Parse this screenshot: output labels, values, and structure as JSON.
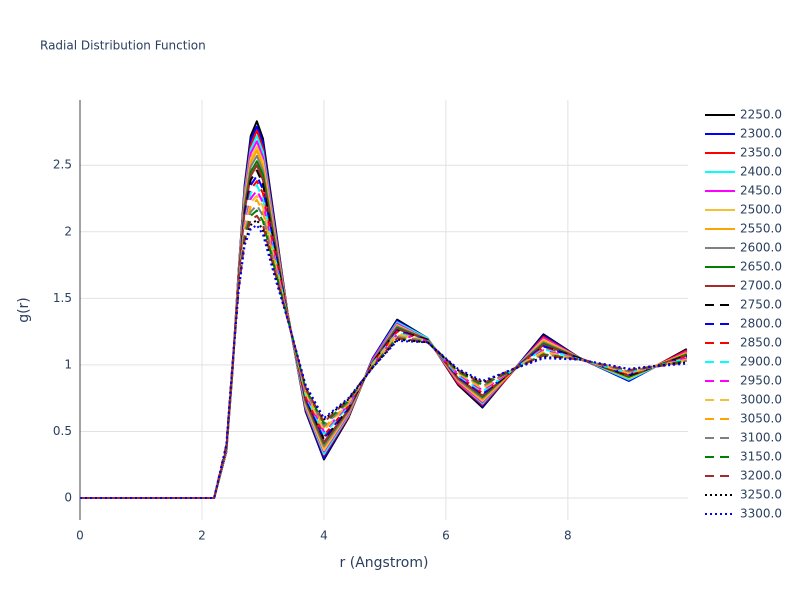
{
  "chart_data": {
    "type": "line",
    "title": "Radial Distribution Function",
    "x_label": "r (Angstrom)",
    "y_label": "g(r)",
    "x": [
      0,
      2.2,
      2.4,
      2.5,
      2.6,
      2.7,
      2.8,
      2.9,
      3.0,
      3.2,
      3.4,
      3.7,
      4.0,
      4.4,
      4.8,
      5.2,
      5.7,
      6.2,
      6.6,
      7.0,
      7.6,
      8.2,
      9.0,
      9.95
    ],
    "xlim": [
      0,
      9.97
    ],
    "xticks": [
      0,
      2,
      4,
      6,
      8
    ],
    "ylim": [
      -0.165,
      2.99
    ],
    "yticks": [
      0,
      0.5,
      1,
      1.5,
      2,
      2.5
    ],
    "grid": true,
    "series": [
      {
        "name": "2250.0",
        "color": "#000000",
        "dash": "solid",
        "values": [
          0,
          0,
          0.35,
          0.95,
          1.7,
          2.35,
          2.72,
          2.83,
          2.7,
          2.05,
          1.4,
          0.65,
          0.29,
          0.6,
          1.05,
          1.34,
          1.2,
          0.85,
          0.68,
          0.9,
          1.23,
          1.05,
          0.88,
          1.12
        ]
      },
      {
        "name": "2300.0",
        "color": "#0000ff",
        "dash": "solid",
        "values": [
          0,
          0,
          0.35,
          0.95,
          1.69,
          2.33,
          2.69,
          2.79,
          2.67,
          2.03,
          1.4,
          0.66,
          0.3,
          0.61,
          1.05,
          1.33,
          1.2,
          0.86,
          0.69,
          0.9,
          1.22,
          1.05,
          0.88,
          1.11
        ]
      },
      {
        "name": "2350.0",
        "color": "#ff0000",
        "dash": "solid",
        "values": [
          0,
          0,
          0.36,
          0.95,
          1.69,
          2.31,
          2.65,
          2.76,
          2.63,
          2.01,
          1.4,
          0.67,
          0.32,
          0.61,
          1.04,
          1.32,
          1.2,
          0.86,
          0.7,
          0.9,
          1.21,
          1.05,
          0.89,
          1.11
        ]
      },
      {
        "name": "2400.0",
        "color": "#00ffff",
        "dash": "solid",
        "values": [
          0,
          0,
          0.36,
          0.96,
          1.68,
          2.29,
          2.62,
          2.72,
          2.6,
          1.99,
          1.39,
          0.68,
          0.33,
          0.62,
          1.04,
          1.32,
          1.2,
          0.87,
          0.71,
          0.91,
          1.2,
          1.05,
          0.89,
          1.1
        ]
      },
      {
        "name": "2450.0",
        "color": "#ff00ff",
        "dash": "solid",
        "values": [
          0,
          0,
          0.36,
          0.96,
          1.67,
          2.26,
          2.59,
          2.68,
          2.56,
          1.97,
          1.39,
          0.69,
          0.35,
          0.63,
          1.04,
          1.31,
          1.19,
          0.87,
          0.72,
          0.91,
          1.2,
          1.05,
          0.9,
          1.1
        ]
      },
      {
        "name": "2500.0",
        "color": "#f5c034",
        "dash": "solid",
        "values": [
          0,
          0,
          0.36,
          0.96,
          1.66,
          2.24,
          2.55,
          2.64,
          2.53,
          1.95,
          1.39,
          0.7,
          0.36,
          0.64,
          1.03,
          1.3,
          1.19,
          0.88,
          0.73,
          0.91,
          1.19,
          1.05,
          0.9,
          1.09
        ]
      },
      {
        "name": "2550.0",
        "color": "#ffa500",
        "dash": "solid",
        "values": [
          0,
          0,
          0.36,
          0.96,
          1.66,
          2.22,
          2.52,
          2.61,
          2.49,
          1.94,
          1.39,
          0.71,
          0.38,
          0.64,
          1.03,
          1.29,
          1.19,
          0.88,
          0.74,
          0.91,
          1.18,
          1.05,
          0.91,
          1.09
        ]
      },
      {
        "name": "2600.0",
        "color": "#808080",
        "dash": "solid",
        "values": [
          0,
          0,
          0.37,
          0.97,
          1.65,
          2.2,
          2.49,
          2.57,
          2.46,
          1.92,
          1.38,
          0.72,
          0.39,
          0.65,
          1.03,
          1.29,
          1.19,
          0.89,
          0.75,
          0.92,
          1.17,
          1.05,
          0.91,
          1.08
        ]
      },
      {
        "name": "2650.0",
        "color": "#008000",
        "dash": "solid",
        "values": [
          0,
          0,
          0.37,
          0.97,
          1.64,
          2.18,
          2.45,
          2.53,
          2.43,
          1.9,
          1.38,
          0.73,
          0.41,
          0.66,
          1.02,
          1.28,
          1.19,
          0.9,
          0.76,
          0.92,
          1.16,
          1.05,
          0.91,
          1.08
        ]
      },
      {
        "name": "2700.0",
        "color": "#a52a2a",
        "dash": "solid",
        "values": [
          0,
          0,
          0.37,
          0.97,
          1.64,
          2.16,
          2.42,
          2.5,
          2.39,
          1.88,
          1.38,
          0.74,
          0.42,
          0.66,
          1.02,
          1.27,
          1.19,
          0.9,
          0.77,
          0.92,
          1.15,
          1.05,
          0.92,
          1.07
        ]
      },
      {
        "name": "2750.0",
        "color": "#000000",
        "dash": "dash",
        "values": [
          0,
          0,
          0.37,
          0.97,
          1.63,
          2.14,
          2.39,
          2.46,
          2.36,
          1.86,
          1.38,
          0.75,
          0.44,
          0.67,
          1.02,
          1.26,
          1.19,
          0.91,
          0.78,
          0.92,
          1.14,
          1.05,
          0.92,
          1.07
        ]
      },
      {
        "name": "2800.0",
        "color": "#0000ff",
        "dash": "dash",
        "values": [
          0,
          0,
          0.38,
          0.98,
          1.62,
          2.11,
          2.35,
          2.42,
          2.32,
          1.84,
          1.37,
          0.75,
          0.45,
          0.68,
          1.01,
          1.26,
          1.18,
          0.91,
          0.78,
          0.93,
          1.14,
          1.04,
          0.93,
          1.06
        ]
      },
      {
        "name": "2850.0",
        "color": "#ff0000",
        "dash": "dash",
        "values": [
          0,
          0,
          0.38,
          0.98,
          1.61,
          2.09,
          2.32,
          2.38,
          2.29,
          1.82,
          1.37,
          0.76,
          0.47,
          0.69,
          1.01,
          1.25,
          1.18,
          0.92,
          0.79,
          0.93,
          1.13,
          1.04,
          0.93,
          1.06
        ]
      },
      {
        "name": "2900.0",
        "color": "#00ffff",
        "dash": "dash",
        "values": [
          0,
          0,
          0.38,
          0.98,
          1.61,
          2.07,
          2.29,
          2.35,
          2.25,
          1.8,
          1.37,
          0.77,
          0.48,
          0.69,
          1.01,
          1.24,
          1.18,
          0.92,
          0.8,
          0.93,
          1.12,
          1.04,
          0.94,
          1.05
        ]
      },
      {
        "name": "2950.0",
        "color": "#ff00ff",
        "dash": "dash",
        "values": [
          0,
          0,
          0.38,
          0.98,
          1.6,
          2.05,
          2.25,
          2.31,
          2.22,
          1.78,
          1.37,
          0.78,
          0.5,
          0.7,
          1.0,
          1.23,
          1.18,
          0.93,
          0.81,
          0.93,
          1.11,
          1.04,
          0.94,
          1.05
        ]
      },
      {
        "name": "3000.0",
        "color": "#f5c034",
        "dash": "dash",
        "values": [
          0,
          0,
          0.39,
          0.99,
          1.59,
          2.03,
          2.22,
          2.27,
          2.19,
          1.76,
          1.36,
          0.79,
          0.51,
          0.71,
          1.0,
          1.23,
          1.18,
          0.94,
          0.82,
          0.94,
          1.1,
          1.04,
          0.94,
          1.04
        ]
      },
      {
        "name": "3050.0",
        "color": "#ffa500",
        "dash": "dash",
        "values": [
          0,
          0,
          0.39,
          0.99,
          1.59,
          2.01,
          2.19,
          2.24,
          2.15,
          1.75,
          1.36,
          0.8,
          0.53,
          0.71,
          1.0,
          1.22,
          1.18,
          0.94,
          0.83,
          0.94,
          1.09,
          1.04,
          0.95,
          1.04
        ]
      },
      {
        "name": "3100.0",
        "color": "#808080",
        "dash": "dash",
        "values": [
          0,
          0,
          0.39,
          0.99,
          1.58,
          1.99,
          2.15,
          2.2,
          2.12,
          1.73,
          1.36,
          0.81,
          0.54,
          0.72,
          0.99,
          1.21,
          1.18,
          0.95,
          0.84,
          0.94,
          1.08,
          1.04,
          0.95,
          1.03
        ]
      },
      {
        "name": "3150.0",
        "color": "#008000",
        "dash": "dash",
        "values": [
          0,
          0,
          0.39,
          0.99,
          1.57,
          1.96,
          2.12,
          2.16,
          2.08,
          1.71,
          1.36,
          0.82,
          0.56,
          0.73,
          0.99,
          1.2,
          1.17,
          0.95,
          0.85,
          0.94,
          1.08,
          1.04,
          0.96,
          1.03
        ]
      },
      {
        "name": "3200.0",
        "color": "#a52a2a",
        "dash": "dash",
        "values": [
          0,
          0,
          0.4,
          1.0,
          1.56,
          1.94,
          2.09,
          2.12,
          2.05,
          1.69,
          1.35,
          0.83,
          0.57,
          0.74,
          0.99,
          1.2,
          1.17,
          0.96,
          0.86,
          0.95,
          1.07,
          1.04,
          0.96,
          1.02
        ]
      },
      {
        "name": "3250.0",
        "color": "#000000",
        "dash": "dot",
        "values": [
          0,
          0,
          0.4,
          1.0,
          1.56,
          1.92,
          2.05,
          2.09,
          2.01,
          1.67,
          1.35,
          0.84,
          0.59,
          0.74,
          0.98,
          1.19,
          1.17,
          0.96,
          0.87,
          0.95,
          1.06,
          1.04,
          0.97,
          1.02
        ]
      },
      {
        "name": "3300.0",
        "color": "#0000ff",
        "dash": "dot",
        "values": [
          0,
          0,
          0.4,
          1.0,
          1.55,
          1.9,
          2.02,
          2.05,
          1.98,
          1.65,
          1.35,
          0.85,
          0.6,
          0.75,
          0.98,
          1.18,
          1.17,
          0.97,
          0.88,
          0.95,
          1.05,
          1.04,
          0.97,
          1.01
        ]
      }
    ]
  }
}
